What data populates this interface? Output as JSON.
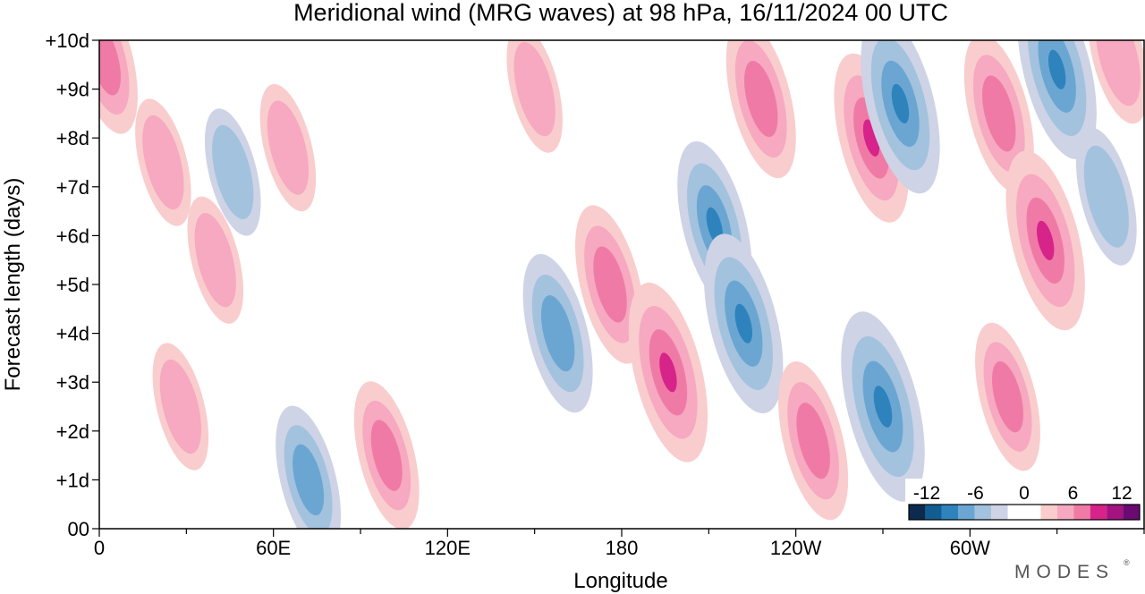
{
  "chart_data": {
    "type": "heatmap",
    "title": "Meridional wind (MRG waves) at  98 hPa,  16/11/2024  00 UTC",
    "xlabel": "Longitude",
    "ylabel": "Forecast length (days)",
    "xlim": [
      0,
      360
    ],
    "ylim": [
      0,
      10
    ],
    "x_ticks": [
      {
        "lon": 0,
        "label": "0"
      },
      {
        "lon": 60,
        "label": "60E"
      },
      {
        "lon": 120,
        "label": "120E"
      },
      {
        "lon": 180,
        "label": "180"
      },
      {
        "lon": 240,
        "label": "120W"
      },
      {
        "lon": 300,
        "label": "60W"
      }
    ],
    "y_ticks": [
      {
        "day": 0,
        "label": "00"
      },
      {
        "day": 1,
        "label": "+1d"
      },
      {
        "day": 2,
        "label": "+2d"
      },
      {
        "day": 3,
        "label": "+3d"
      },
      {
        "day": 4,
        "label": "+4d"
      },
      {
        "day": 5,
        "label": "+5d"
      },
      {
        "day": 6,
        "label": "+6d"
      },
      {
        "day": 7,
        "label": "+7d"
      },
      {
        "day": 8,
        "label": "+8d"
      },
      {
        "day": 9,
        "label": "+9d"
      },
      {
        "day": 10,
        "label": "+10d"
      }
    ],
    "colorbar": {
      "labels": [
        "-12",
        "-6",
        "0",
        "6",
        "12"
      ],
      "colors": [
        "#0c2a4e",
        "#115d91",
        "#2e83bd",
        "#6ba6d2",
        "#a3c2de",
        "#ced3e6",
        "#ffffff",
        "#ffffff",
        "#f9cdcd",
        "#f6a9c0",
        "#f07aa6",
        "#d6248a",
        "#a4137f",
        "#6b0a72"
      ]
    },
    "features": [
      {
        "lon": 2,
        "day": 9.6,
        "value": 5
      },
      {
        "lon": 22,
        "day": 7.5,
        "value": 3
      },
      {
        "lon": 40,
        "day": 5.5,
        "value": 3
      },
      {
        "lon": 28,
        "day": 2.5,
        "value": 3
      },
      {
        "lon": 46,
        "day": 7.3,
        "value": -3
      },
      {
        "lon": 72,
        "day": 1.0,
        "value": -5
      },
      {
        "lon": 99,
        "day": 1.5,
        "value": 5
      },
      {
        "lon": 65,
        "day": 7.8,
        "value": 3
      },
      {
        "lon": 150,
        "day": 9.0,
        "value": 3
      },
      {
        "lon": 158,
        "day": 4.0,
        "value": -6
      },
      {
        "lon": 176,
        "day": 5.0,
        "value": 6
      },
      {
        "lon": 196,
        "day": 3.2,
        "value": 8
      },
      {
        "lon": 212,
        "day": 6.2,
        "value": -7
      },
      {
        "lon": 222,
        "day": 4.2,
        "value": -8
      },
      {
        "lon": 228,
        "day": 8.8,
        "value": 6
      },
      {
        "lon": 246,
        "day": 1.8,
        "value": 6
      },
      {
        "lon": 266,
        "day": 8.0,
        "value": 7
      },
      {
        "lon": 276,
        "day": 8.7,
        "value": -8
      },
      {
        "lon": 270,
        "day": 2.5,
        "value": -9
      },
      {
        "lon": 313,
        "day": 2.7,
        "value": 5
      },
      {
        "lon": 310,
        "day": 8.5,
        "value": 6
      },
      {
        "lon": 326,
        "day": 5.9,
        "value": 8
      },
      {
        "lon": 330,
        "day": 9.4,
        "value": -8
      },
      {
        "lon": 347,
        "day": 6.8,
        "value": -4
      },
      {
        "lon": 351,
        "day": 9.7,
        "value": 4
      }
    ]
  },
  "logo_text": "MODES"
}
